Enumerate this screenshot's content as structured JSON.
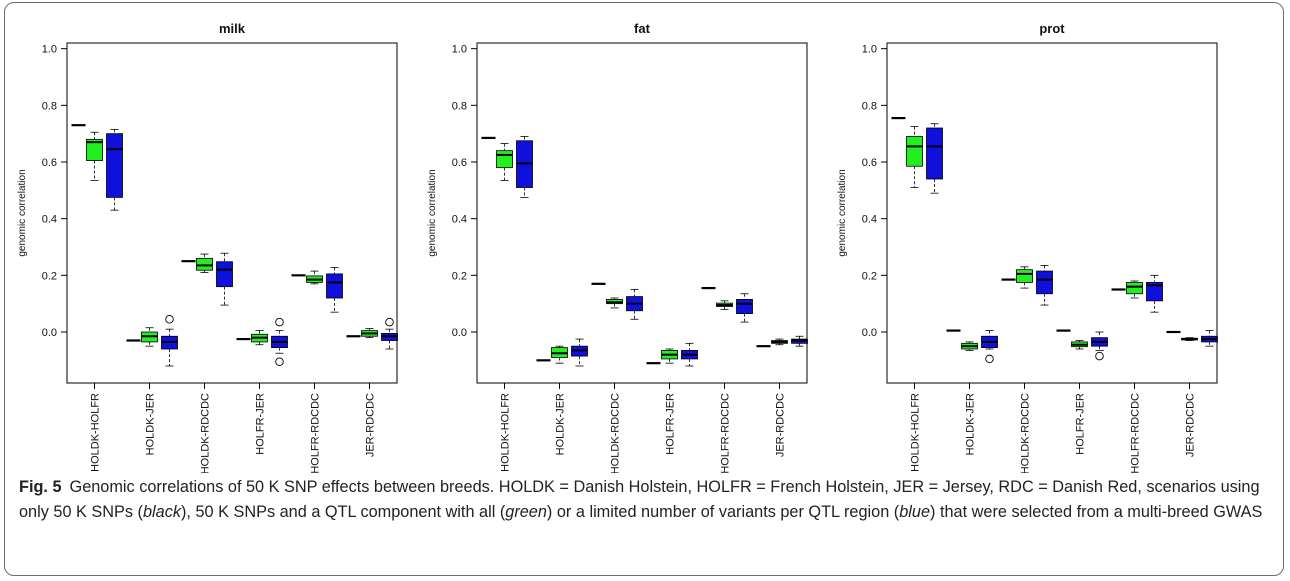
{
  "chart_data": [
    {
      "type": "box",
      "title": "milk",
      "xlabel": "",
      "ylabel": "genomic correlation",
      "ylim": [
        -0.18,
        1.02
      ],
      "yticks": [
        "0.0",
        "0.2",
        "0.4",
        "0.6",
        "0.8",
        "1.0"
      ],
      "categories": [
        "HOLDK-HOLFR",
        "HOLDK-JER",
        "HOLDK-RDCDC",
        "HOLFR-JER",
        "HOLFR-RDCDC",
        "JER-RDCDC"
      ],
      "series": [
        {
          "color": "#000000",
          "values": [
            0.73,
            -0.03,
            0.25,
            -0.025,
            0.2,
            -0.015
          ]
        },
        {
          "color": "#22ee22",
          "boxes": [
            {
              "min": 0.535,
              "q1": 0.605,
              "median": 0.67,
              "q3": 0.68,
              "max": 0.705,
              "outliers": []
            },
            {
              "min": -0.05,
              "q1": -0.035,
              "median": -0.015,
              "q3": 0.0,
              "max": 0.015,
              "outliers": []
            },
            {
              "min": 0.21,
              "q1": 0.218,
              "median": 0.235,
              "q3": 0.26,
              "max": 0.275,
              "outliers": []
            },
            {
              "min": -0.045,
              "q1": -0.035,
              "median": -0.02,
              "q3": -0.008,
              "max": 0.005,
              "outliers": []
            },
            {
              "min": 0.17,
              "q1": 0.175,
              "median": 0.185,
              "q3": 0.198,
              "max": 0.215,
              "outliers": []
            },
            {
              "min": -0.02,
              "q1": -0.015,
              "median": -0.005,
              "q3": 0.005,
              "max": 0.012,
              "outliers": []
            }
          ]
        },
        {
          "color": "#1010dd",
          "boxes": [
            {
              "min": 0.43,
              "q1": 0.475,
              "median": 0.645,
              "q3": 0.7,
              "max": 0.715,
              "outliers": []
            },
            {
              "min": -0.12,
              "q1": -0.06,
              "median": -0.035,
              "q3": -0.015,
              "max": 0.01,
              "outliers": [
                0.045
              ]
            },
            {
              "min": 0.095,
              "q1": 0.16,
              "median": 0.22,
              "q3": 0.248,
              "max": 0.278,
              "outliers": []
            },
            {
              "min": -0.075,
              "q1": -0.055,
              "median": -0.035,
              "q3": -0.015,
              "max": 0.005,
              "outliers": [
                -0.105,
                0.035
              ]
            },
            {
              "min": 0.07,
              "q1": 0.12,
              "median": 0.175,
              "q3": 0.205,
              "max": 0.228,
              "outliers": []
            },
            {
              "min": -0.06,
              "q1": -0.03,
              "median": -0.015,
              "q3": -0.005,
              "max": 0.01,
              "outliers": [
                0.035
              ]
            }
          ]
        }
      ]
    },
    {
      "type": "box",
      "title": "fat",
      "xlabel": "",
      "ylabel": "genomic correlation",
      "ylim": [
        -0.18,
        1.02
      ],
      "yticks": [
        "0.0",
        "0.2",
        "0.4",
        "0.6",
        "0.8",
        "1.0"
      ],
      "categories": [
        "HOLDK-HOLFR",
        "HOLDK-JER",
        "HOLDK-RDCDC",
        "HOLFR-JER",
        "HOLFR-RDCDC",
        "JER-RDCDC"
      ],
      "series": [
        {
          "color": "#000000",
          "values": [
            0.685,
            -0.1,
            0.17,
            -0.11,
            0.155,
            -0.05
          ]
        },
        {
          "color": "#22ee22",
          "boxes": [
            {
              "min": 0.535,
              "q1": 0.58,
              "median": 0.625,
              "q3": 0.64,
              "max": 0.665,
              "outliers": []
            },
            {
              "min": -0.11,
              "q1": -0.09,
              "median": -0.075,
              "q3": -0.055,
              "max": -0.05,
              "outliers": []
            },
            {
              "min": 0.085,
              "q1": 0.1,
              "median": 0.105,
              "q3": 0.115,
              "max": 0.12,
              "outliers": []
            },
            {
              "min": -0.11,
              "q1": -0.095,
              "median": -0.08,
              "q3": -0.065,
              "max": -0.06,
              "outliers": []
            },
            {
              "min": 0.08,
              "q1": 0.09,
              "median": 0.095,
              "q3": 0.102,
              "max": 0.11,
              "outliers": []
            },
            {
              "min": -0.045,
              "q1": -0.04,
              "median": -0.035,
              "q3": -0.03,
              "max": -0.025,
              "outliers": []
            }
          ]
        },
        {
          "color": "#1010dd",
          "boxes": [
            {
              "min": 0.475,
              "q1": 0.51,
              "median": 0.595,
              "q3": 0.675,
              "max": 0.69,
              "outliers": []
            },
            {
              "min": -0.12,
              "q1": -0.085,
              "median": -0.065,
              "q3": -0.05,
              "max": -0.025,
              "outliers": []
            },
            {
              "min": 0.045,
              "q1": 0.075,
              "median": 0.1,
              "q3": 0.125,
              "max": 0.15,
              "outliers": []
            },
            {
              "min": -0.12,
              "q1": -0.095,
              "median": -0.08,
              "q3": -0.065,
              "max": -0.04,
              "outliers": []
            },
            {
              "min": 0.035,
              "q1": 0.065,
              "median": 0.1,
              "q3": 0.115,
              "max": 0.135,
              "outliers": []
            },
            {
              "min": -0.05,
              "q1": -0.04,
              "median": -0.03,
              "q3": -0.025,
              "max": -0.015,
              "outliers": []
            }
          ]
        }
      ]
    },
    {
      "type": "box",
      "title": "prot",
      "xlabel": "",
      "ylabel": "genomic correlation",
      "ylim": [
        -0.18,
        1.02
      ],
      "yticks": [
        "0.0",
        "0.2",
        "0.4",
        "0.6",
        "0.8",
        "1.0"
      ],
      "categories": [
        "HOLDK-HOLFR",
        "HOLDK-JER",
        "HOLDK-RDCDC",
        "HOLFR-JER",
        "HOLFR-RDCDC",
        "JER-RDCDC"
      ],
      "series": [
        {
          "color": "#000000",
          "values": [
            0.755,
            0.005,
            0.185,
            0.005,
            0.15,
            0.0
          ]
        },
        {
          "color": "#22ee22",
          "boxes": [
            {
              "min": 0.51,
              "q1": 0.585,
              "median": 0.655,
              "q3": 0.69,
              "max": 0.725,
              "outliers": []
            },
            {
              "min": -0.065,
              "q1": -0.06,
              "median": -0.05,
              "q3": -0.04,
              "max": -0.035,
              "outliers": []
            },
            {
              "min": 0.155,
              "q1": 0.175,
              "median": 0.205,
              "q3": 0.22,
              "max": 0.23,
              "outliers": []
            },
            {
              "min": -0.06,
              "q1": -0.052,
              "median": -0.045,
              "q3": -0.035,
              "max": -0.03,
              "outliers": []
            },
            {
              "min": 0.12,
              "q1": 0.135,
              "median": 0.16,
              "q3": 0.175,
              "max": 0.18,
              "outliers": []
            },
            {
              "min": -0.03,
              "q1": -0.028,
              "median": -0.025,
              "q3": -0.022,
              "max": -0.02,
              "outliers": []
            }
          ]
        },
        {
          "color": "#1010dd",
          "boxes": [
            {
              "min": 0.49,
              "q1": 0.54,
              "median": 0.655,
              "q3": 0.72,
              "max": 0.735,
              "outliers": []
            },
            {
              "min": -0.06,
              "q1": -0.055,
              "median": -0.035,
              "q3": -0.015,
              "max": 0.005,
              "outliers": [
                -0.095
              ]
            },
            {
              "min": 0.095,
              "q1": 0.135,
              "median": 0.185,
              "q3": 0.215,
              "max": 0.235,
              "outliers": []
            },
            {
              "min": -0.065,
              "q1": -0.05,
              "median": -0.035,
              "q3": -0.02,
              "max": 0.0,
              "outliers": [
                -0.085
              ]
            },
            {
              "min": 0.07,
              "q1": 0.11,
              "median": 0.165,
              "q3": 0.175,
              "max": 0.2,
              "outliers": []
            },
            {
              "min": -0.05,
              "q1": -0.035,
              "median": -0.025,
              "q3": -0.015,
              "max": 0.005,
              "outliers": []
            }
          ]
        }
      ]
    }
  ],
  "caption": {
    "label": "Fig. 5",
    "text_parts": [
      {
        "text": "Genomic correlations of 50 K SNP effects between breeds. HOLDK = Danish Holstein, HOLFR = French Holstein, JER = Jersey, RDC = Danish Red, scenarios using only 50 K SNPs (",
        "italic": false
      },
      {
        "text": "black",
        "italic": true
      },
      {
        "text": "), 50 K SNPs and a QTL component with all (",
        "italic": false
      },
      {
        "text": "green",
        "italic": true
      },
      {
        "text": ") or a limited number of variants per QTL region (",
        "italic": false
      },
      {
        "text": "blue",
        "italic": true
      },
      {
        "text": ") that were selected from a multi-breed GWAS",
        "italic": false
      }
    ]
  }
}
